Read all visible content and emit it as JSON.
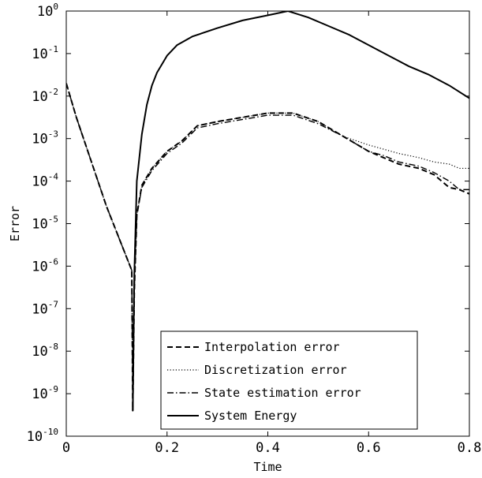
{
  "chart_data": {
    "type": "line",
    "title": "",
    "xlabel": "Time",
    "ylabel": "Error",
    "xlim": [
      0,
      0.8
    ],
    "ylim_log10": [
      -10,
      0
    ],
    "y_scale": "log",
    "grid": false,
    "legend_position": "bottom-center",
    "x_ticks": [
      0,
      0.2,
      0.4,
      0.6,
      0.8
    ],
    "x_tick_labels": [
      "0",
      "0.2",
      "0.4",
      "0.6",
      "0.8"
    ],
    "y_ticks_log10": [
      0,
      -1,
      -2,
      -3,
      -4,
      -5,
      -6,
      -7,
      -8,
      -9,
      -10
    ],
    "y_tick_base": "10",
    "y_tick_exponents": [
      "0",
      "-1",
      "-2",
      "-3",
      "-4",
      "-5",
      "-6",
      "-7",
      "-8",
      "-9",
      "-10"
    ],
    "series": [
      {
        "name": "Interpolation error",
        "style": "dashed",
        "x": [
          0.0,
          0.02,
          0.04,
          0.06,
          0.08,
          0.1,
          0.12,
          0.13,
          0.132,
          0.135,
          0.14,
          0.15,
          0.17,
          0.2,
          0.23,
          0.26,
          0.3,
          0.35,
          0.4,
          0.45,
          0.5,
          0.55,
          0.6,
          0.63,
          0.66,
          0.7,
          0.73,
          0.76,
          0.78,
          0.8
        ],
        "log10y": [
          -1.7,
          -2.5,
          -3.2,
          -3.9,
          -4.6,
          -5.2,
          -5.8,
          -6.1,
          -9.4,
          -6.6,
          -4.8,
          -4.1,
          -3.7,
          -3.3,
          -3.05,
          -2.7,
          -2.6,
          -2.5,
          -2.4,
          -2.4,
          -2.6,
          -2.95,
          -3.3,
          -3.45,
          -3.6,
          -3.7,
          -3.85,
          -4.15,
          -4.2,
          -4.3
        ]
      },
      {
        "name": "Discretization error",
        "style": "dotted",
        "x": [
          0.0,
          0.02,
          0.04,
          0.06,
          0.08,
          0.1,
          0.12,
          0.13,
          0.132,
          0.135,
          0.14,
          0.15,
          0.17,
          0.2,
          0.23,
          0.26,
          0.3,
          0.35,
          0.4,
          0.45,
          0.5,
          0.55,
          0.6,
          0.63,
          0.66,
          0.7,
          0.73,
          0.76,
          0.78,
          0.8
        ],
        "log10y": [
          -1.7,
          -2.5,
          -3.2,
          -3.9,
          -4.6,
          -5.2,
          -5.8,
          -6.1,
          -9.4,
          -6.6,
          -4.8,
          -4.1,
          -3.7,
          -3.3,
          -3.05,
          -2.7,
          -2.6,
          -2.5,
          -2.4,
          -2.4,
          -2.6,
          -2.95,
          -3.15,
          -3.25,
          -3.35,
          -3.45,
          -3.55,
          -3.6,
          -3.7,
          -3.7
        ]
      },
      {
        "name": "State estimation error",
        "style": "dashdot",
        "x": [
          0.0,
          0.02,
          0.04,
          0.06,
          0.08,
          0.1,
          0.12,
          0.13,
          0.132,
          0.135,
          0.14,
          0.15,
          0.17,
          0.2,
          0.23,
          0.26,
          0.3,
          0.35,
          0.4,
          0.45,
          0.5,
          0.55,
          0.6,
          0.63,
          0.66,
          0.7,
          0.73,
          0.76,
          0.78,
          0.8
        ],
        "log10y": [
          -1.7,
          -2.5,
          -3.2,
          -3.9,
          -4.6,
          -5.2,
          -5.8,
          -6.1,
          -9.4,
          -6.6,
          -4.8,
          -4.15,
          -3.75,
          -3.35,
          -3.1,
          -2.75,
          -2.65,
          -2.55,
          -2.45,
          -2.45,
          -2.65,
          -2.95,
          -3.3,
          -3.4,
          -3.55,
          -3.65,
          -3.8,
          -4.0,
          -4.2,
          -4.2
        ]
      },
      {
        "name": "System Energy",
        "style": "solid",
        "x": [
          0.132,
          0.135,
          0.14,
          0.15,
          0.16,
          0.17,
          0.18,
          0.2,
          0.22,
          0.25,
          0.3,
          0.35,
          0.4,
          0.44,
          0.48,
          0.52,
          0.56,
          0.6,
          0.64,
          0.68,
          0.72,
          0.76,
          0.8
        ],
        "log10y": [
          -9.4,
          -6.2,
          -4.0,
          -2.9,
          -2.2,
          -1.75,
          -1.45,
          -1.05,
          -0.8,
          -0.6,
          -0.4,
          -0.22,
          -0.1,
          0.0,
          -0.15,
          -0.35,
          -0.55,
          -0.8,
          -1.05,
          -1.3,
          -1.5,
          -1.75,
          -2.05
        ]
      }
    ]
  }
}
